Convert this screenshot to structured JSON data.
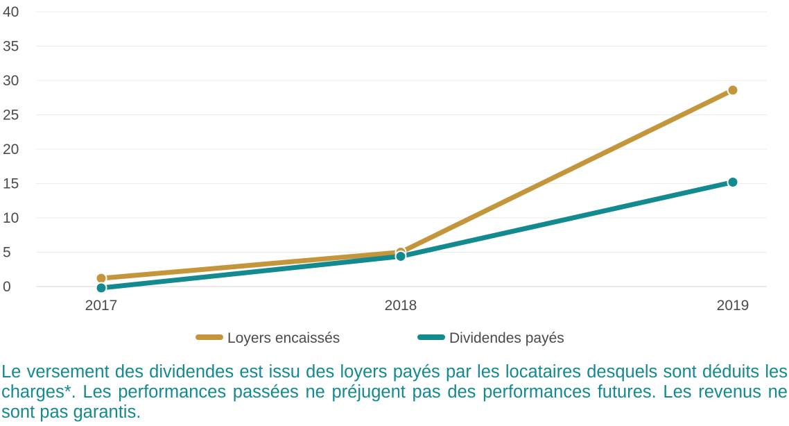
{
  "chart_data": {
    "type": "line",
    "categories": [
      "2017",
      "2018",
      "2019"
    ],
    "series": [
      {
        "name": "Loyers encaissés",
        "values": [
          1.2,
          5.0,
          28.6
        ],
        "color": "#c4963c"
      },
      {
        "name": "Dividendes payés",
        "values": [
          -0.2,
          4.4,
          15.2
        ],
        "color": "#138a8f"
      }
    ],
    "ylim": [
      0,
      40
    ],
    "yticks": [
      0,
      5,
      10,
      15,
      20,
      25,
      30,
      35,
      40
    ],
    "grid": true,
    "legend_position": "bottom-center"
  },
  "footnote": "Le versement des dividendes est issu des loyers payés par les locataires desquels sont déduits les charges*. Les performances passées ne préjugent pas des performances futures. Les revenus ne sont pas garantis."
}
